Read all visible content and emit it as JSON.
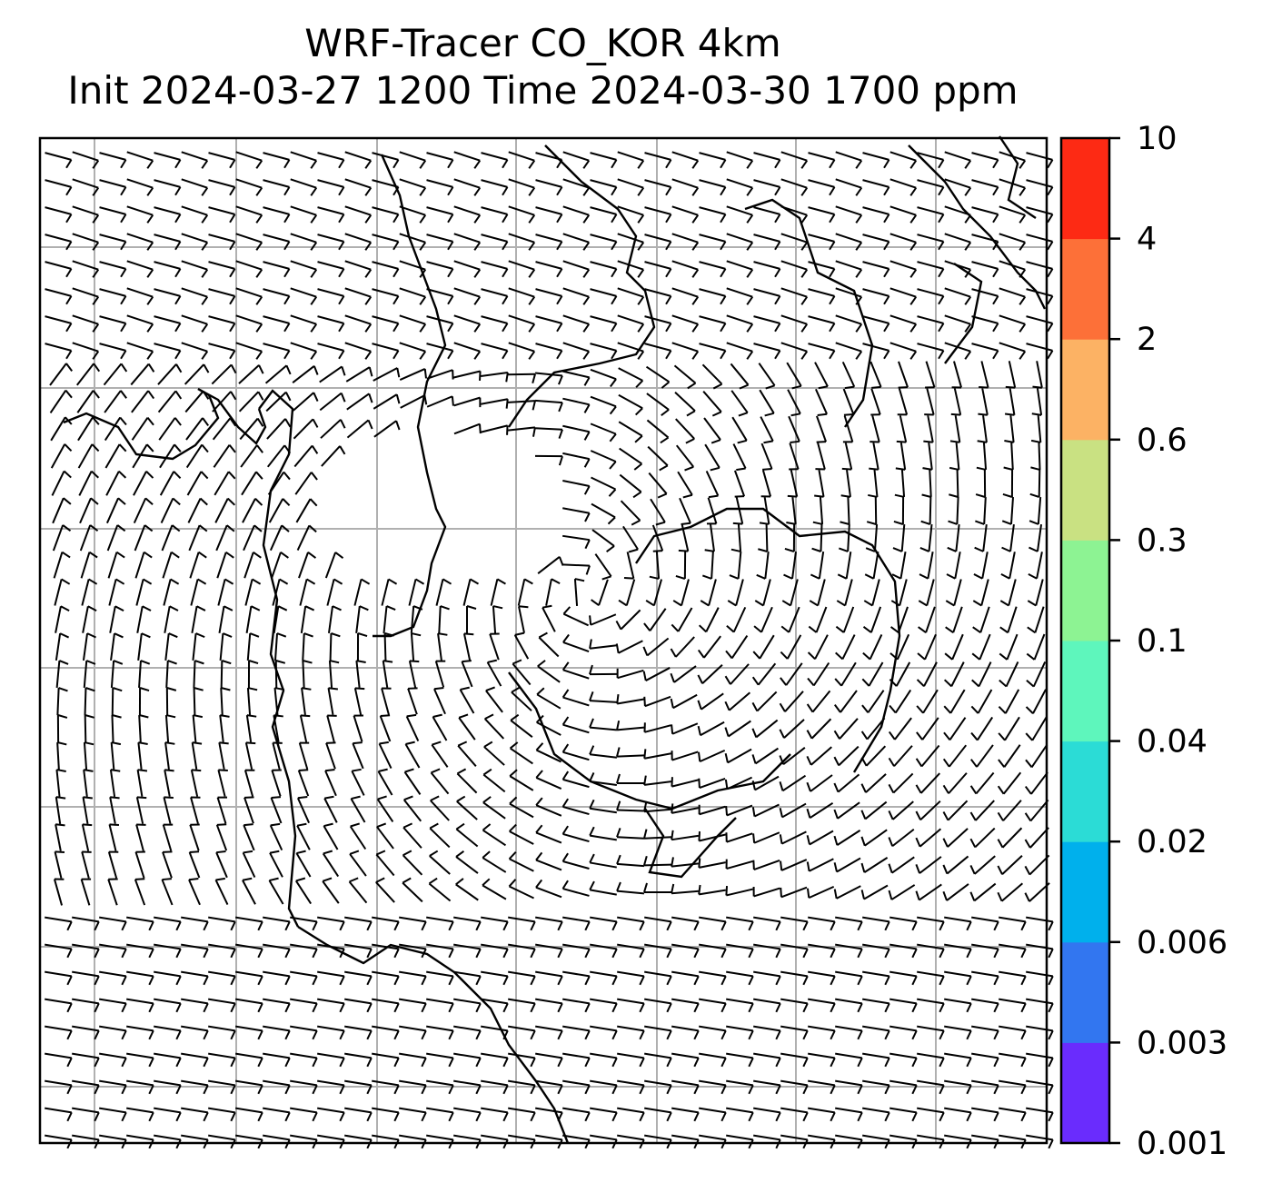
{
  "title": {
    "line1": "WRF-Tracer CO_KOR 4km",
    "line2": "Init 2024-03-27 1200 Time 2024-03-30 1700 ppm"
  },
  "colorbar": {
    "tick_labels": [
      "10",
      "4",
      "2",
      "0.6",
      "0.3",
      "0.1",
      "0.04",
      "0.02",
      "0.006",
      "0.003",
      "0.001"
    ],
    "colors": [
      "#6a2cfd",
      "#3276f0",
      "#00b0ec",
      "#2bdcd6",
      "#5ef6bc",
      "#8df393",
      "#c9e182",
      "#fcb264",
      "#fd7038",
      "#fd2a14"
    ]
  },
  "map": {
    "background": "#ffffff",
    "gridline_color": "#b0b0b0",
    "coastline_color": "#000000",
    "wind_barb_color": "#000000"
  }
}
